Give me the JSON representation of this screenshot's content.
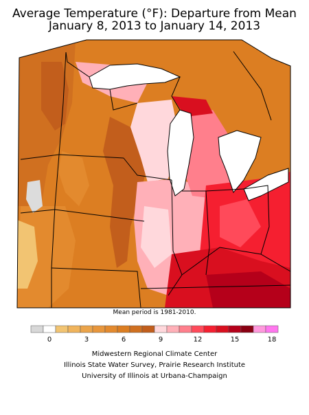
{
  "title_line1": "Average Temperature (°F): Departure from Mean",
  "title_line2": "January 8, 2013 to January 14, 2013",
  "mean_period_note": "Mean period is 1981-2010.",
  "legend": {
    "bins": [
      {
        "from": -1,
        "to": 0,
        "color": "#d8d8d8"
      },
      {
        "from": 0,
        "to": 1,
        "color": "#ffffff"
      },
      {
        "from": 1,
        "to": 2,
        "color": "#f2c472"
      },
      {
        "from": 2,
        "to": 3,
        "color": "#f0b45c"
      },
      {
        "from": 3,
        "to": 4,
        "color": "#eba44a"
      },
      {
        "from": 4,
        "to": 5,
        "color": "#e8963c"
      },
      {
        "from": 5,
        "to": 6,
        "color": "#e38a2e"
      },
      {
        "from": 6,
        "to": 7,
        "color": "#dc7e22"
      },
      {
        "from": 7,
        "to": 8,
        "color": "#d07020"
      },
      {
        "from": 8,
        "to": 9,
        "color": "#c25e1c"
      },
      {
        "from": 9,
        "to": 10,
        "color": "#ffd8dc"
      },
      {
        "from": 10,
        "to": 11,
        "color": "#ffb0b8"
      },
      {
        "from": 11,
        "to": 12,
        "color": "#ff7f8c"
      },
      {
        "from": 12,
        "to": 13,
        "color": "#ff4a5a"
      },
      {
        "from": 13,
        "to": 14,
        "color": "#f51f30"
      },
      {
        "from": 14,
        "to": 15,
        "color": "#d90f1f"
      },
      {
        "from": 15,
        "to": 16,
        "color": "#b5001a"
      },
      {
        "from": 16,
        "to": 17,
        "color": "#8a0012"
      },
      {
        "from": 17,
        "to": 18,
        "color": "#ff99dd"
      },
      {
        "from": 18,
        "to": 19,
        "color": "#ff77ee"
      }
    ],
    "tick_labels": [
      "0",
      "3",
      "6",
      "9",
      "12",
      "15",
      "18"
    ]
  },
  "credits": {
    "line1": "Midwestern Regional Climate Center",
    "line2": "Illinois State Water Survey, Prairie Research Institute",
    "line3": "University of Illinois at Urbana-Champaign"
  },
  "colors": {
    "lake": "#ffffff",
    "border": "#000000",
    "gray_region": "#dcdcdc"
  }
}
